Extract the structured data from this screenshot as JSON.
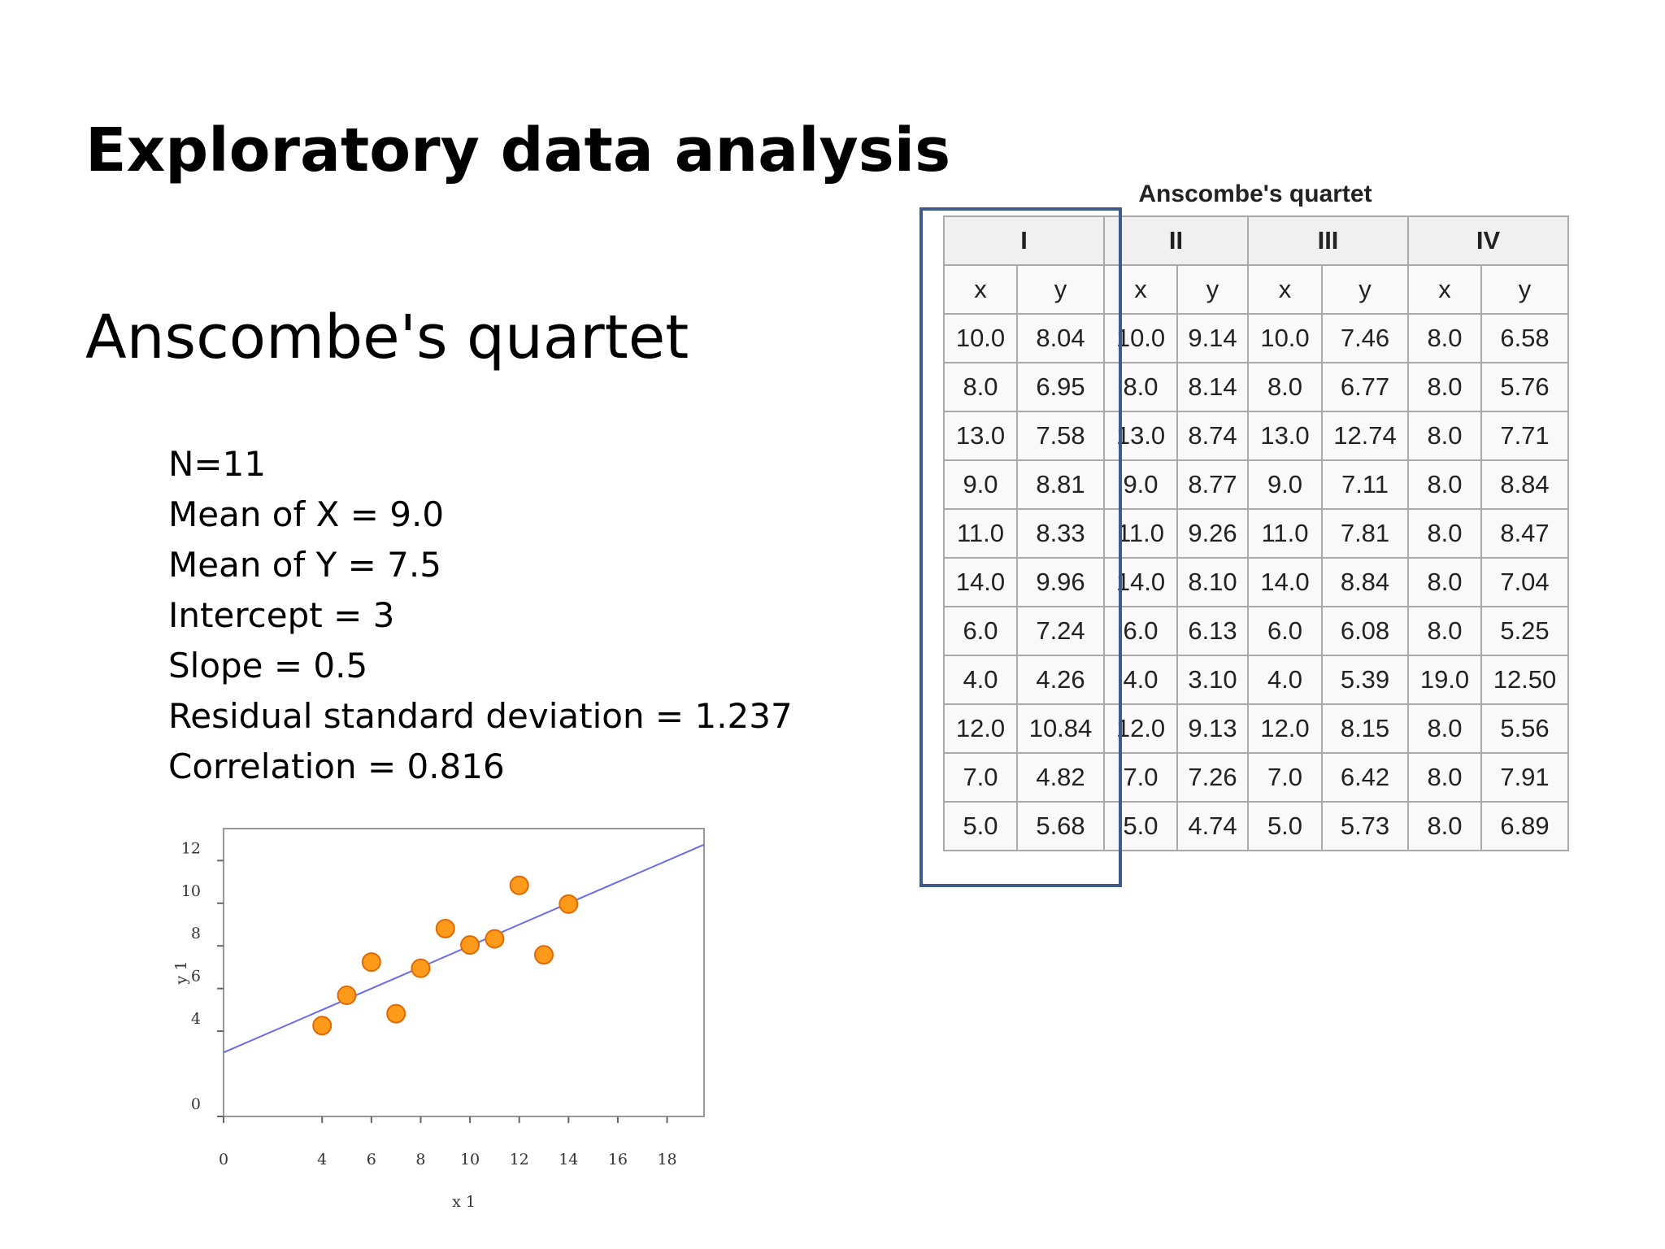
{
  "title": "Exploratory data analysis",
  "subtitle": "Anscombe's quartet",
  "stats": [
    "N=11",
    "Mean of X = 9.0",
    "Mean of Y = 7.5",
    "Intercept = 3",
    "Slope = 0.5",
    "Residual standard deviation = 1.237",
    "Correlation = 0.816"
  ],
  "chart_data": {
    "type": "scatter",
    "x_label": "x 1",
    "y_label": "y 1",
    "x": [
      10,
      8,
      13,
      9,
      11,
      14,
      6,
      4,
      12,
      7,
      5
    ],
    "series": [
      {
        "color": "#ff9a1a",
        "values": [
          8.04,
          6.95,
          7.58,
          8.81,
          8.33,
          9.96,
          7.24,
          4.26,
          10.84,
          4.82,
          5.68
        ]
      }
    ],
    "fit": {
      "intercept": 3,
      "slope": 0.5,
      "color": "#6b6bf0"
    },
    "xlim": [
      0,
      19.5
    ],
    "ylim": [
      0,
      13.5
    ],
    "xticks": [
      0,
      4,
      6,
      8,
      10,
      12,
      14,
      16,
      18
    ],
    "yticks": [
      0,
      4,
      6,
      8,
      10,
      12
    ]
  },
  "table": {
    "caption": "Anscombe's quartet",
    "groups": [
      "I",
      "II",
      "III",
      "IV"
    ],
    "subheaders": [
      "x",
      "y",
      "x",
      "y",
      "x",
      "y",
      "x",
      "y"
    ],
    "rows": [
      [
        "10.0",
        "8.04",
        "10.0",
        "9.14",
        "10.0",
        "7.46",
        "8.0",
        "6.58"
      ],
      [
        "8.0",
        "6.95",
        "8.0",
        "8.14",
        "8.0",
        "6.77",
        "8.0",
        "5.76"
      ],
      [
        "13.0",
        "7.58",
        "13.0",
        "8.74",
        "13.0",
        "12.74",
        "8.0",
        "7.71"
      ],
      [
        "9.0",
        "8.81",
        "9.0",
        "8.77",
        "9.0",
        "7.11",
        "8.0",
        "8.84"
      ],
      [
        "11.0",
        "8.33",
        "11.0",
        "9.26",
        "11.0",
        "7.81",
        "8.0",
        "8.47"
      ],
      [
        "14.0",
        "9.96",
        "14.0",
        "8.10",
        "14.0",
        "8.84",
        "8.0",
        "7.04"
      ],
      [
        "6.0",
        "7.24",
        "6.0",
        "6.13",
        "6.0",
        "6.08",
        "8.0",
        "5.25"
      ],
      [
        "4.0",
        "4.26",
        "4.0",
        "3.10",
        "4.0",
        "5.39",
        "19.0",
        "12.50"
      ],
      [
        "12.0",
        "10.84",
        "12.0",
        "9.13",
        "12.0",
        "8.15",
        "8.0",
        "5.56"
      ],
      [
        "7.0",
        "4.82",
        "7.0",
        "7.26",
        "7.0",
        "6.42",
        "8.0",
        "7.91"
      ],
      [
        "5.0",
        "5.68",
        "5.0",
        "4.74",
        "5.0",
        "5.73",
        "8.0",
        "6.89"
      ]
    ]
  }
}
